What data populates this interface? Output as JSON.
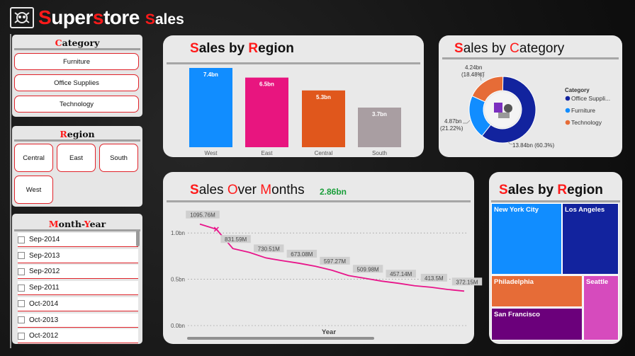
{
  "header": {
    "title_s": "S",
    "title_rest1": "uper",
    "title_s2": "s",
    "title_rest2": "tore",
    "subtitle_s": "S",
    "subtitle_rest": "ales"
  },
  "category_slicer": {
    "title_first": "C",
    "title_rest": "ategory",
    "items": [
      "Furniture",
      "Office Supplies",
      "Technology"
    ]
  },
  "region_slicer": {
    "title_first": "R",
    "title_rest": "egion",
    "items": [
      "Central",
      "East",
      "South",
      "West"
    ]
  },
  "month_slicer": {
    "title_a": "M",
    "title_b": "onth-",
    "title_c": "Y",
    "title_d": "ear",
    "items": [
      "Sep-2014",
      "Sep-2013",
      "Sep-2012",
      "Sep-2011",
      "Oct-2014",
      "Oct-2013",
      "Oct-2012"
    ]
  },
  "sales_by_region": {
    "t1": "S",
    "t2": "ales by ",
    "t3": "R",
    "t4": "egion"
  },
  "sales_by_category": {
    "t1": "S",
    "t2": "ales by ",
    "t3": "C",
    "t4": "ategory"
  },
  "sales_over_months": {
    "t1": "S",
    "t2": "ales ",
    "t3": "O",
    "t4": "ver ",
    "t5": "M",
    "t6": "onths",
    "total": "2.86bn",
    "total_color": "#1a9e3a"
  },
  "sales_by_region_tree": {
    "t1": "S",
    "t2": "ales by ",
    "t3": "R",
    "t4": "egion"
  },
  "chart_data": [
    {
      "type": "bar",
      "title": "Sales by Region",
      "categories": [
        "West",
        "East",
        "Central",
        "South"
      ],
      "values": [
        7.4,
        6.5,
        5.3,
        3.7
      ],
      "labels": [
        "7.4bn",
        "6.5bn",
        "5.3bn",
        "3.7bn"
      ],
      "colors": [
        "#118dff",
        "#e8157f",
        "#e0571c",
        "#a99ea2"
      ],
      "ylim": [
        0,
        7.4
      ]
    },
    {
      "type": "pie",
      "title": "Sales by Category",
      "legend_title": "Category",
      "legend": [
        "Office Suppli...",
        "Furniture",
        "Technology"
      ],
      "values": [
        13.84,
        4.87,
        4.24
      ],
      "labels": [
        "13.84bn (60.3%)",
        "4.87bn\n(21.22%)",
        "4.24bn\n(18.48%)"
      ],
      "colors": [
        "#12239e",
        "#118dff",
        "#e66c37"
      ]
    },
    {
      "type": "line",
      "title": "Sales Over Months",
      "xlabel": "Year",
      "ylabel": "",
      "ticks": [
        "1.0bn",
        "0.5bn",
        "0.0bn"
      ],
      "ylim": [
        0,
        1.2
      ],
      "points": [
        1095.76,
        1040,
        831.59,
        790,
        730.51,
        700,
        673.08,
        640,
        597.27,
        540,
        509.98,
        480,
        457.14,
        430,
        413.5,
        390,
        372.15
      ],
      "point_labels": [
        {
          "i": 0,
          "t": "1095.76M"
        },
        {
          "i": 2,
          "t": "831.59M"
        },
        {
          "i": 4,
          "t": "730.51M"
        },
        {
          "i": 6,
          "t": "673.08M"
        },
        {
          "i": 8,
          "t": "597.27M"
        },
        {
          "i": 10,
          "t": "509.98M"
        },
        {
          "i": 12,
          "t": "457.14M"
        },
        {
          "i": 14,
          "t": "413.5M"
        },
        {
          "i": 16,
          "t": "372.15M"
        }
      ]
    },
    {
      "type": "treemap",
      "title": "Sales by Region",
      "items": [
        {
          "name": "New York City",
          "color": "#118dff"
        },
        {
          "name": "Los Angeles",
          "color": "#12239e"
        },
        {
          "name": "Philadelphia",
          "color": "#e66c37"
        },
        {
          "name": "Seattle",
          "color": "#d64bbd"
        },
        {
          "name": "San Francisco",
          "color": "#6b007b"
        }
      ]
    }
  ]
}
